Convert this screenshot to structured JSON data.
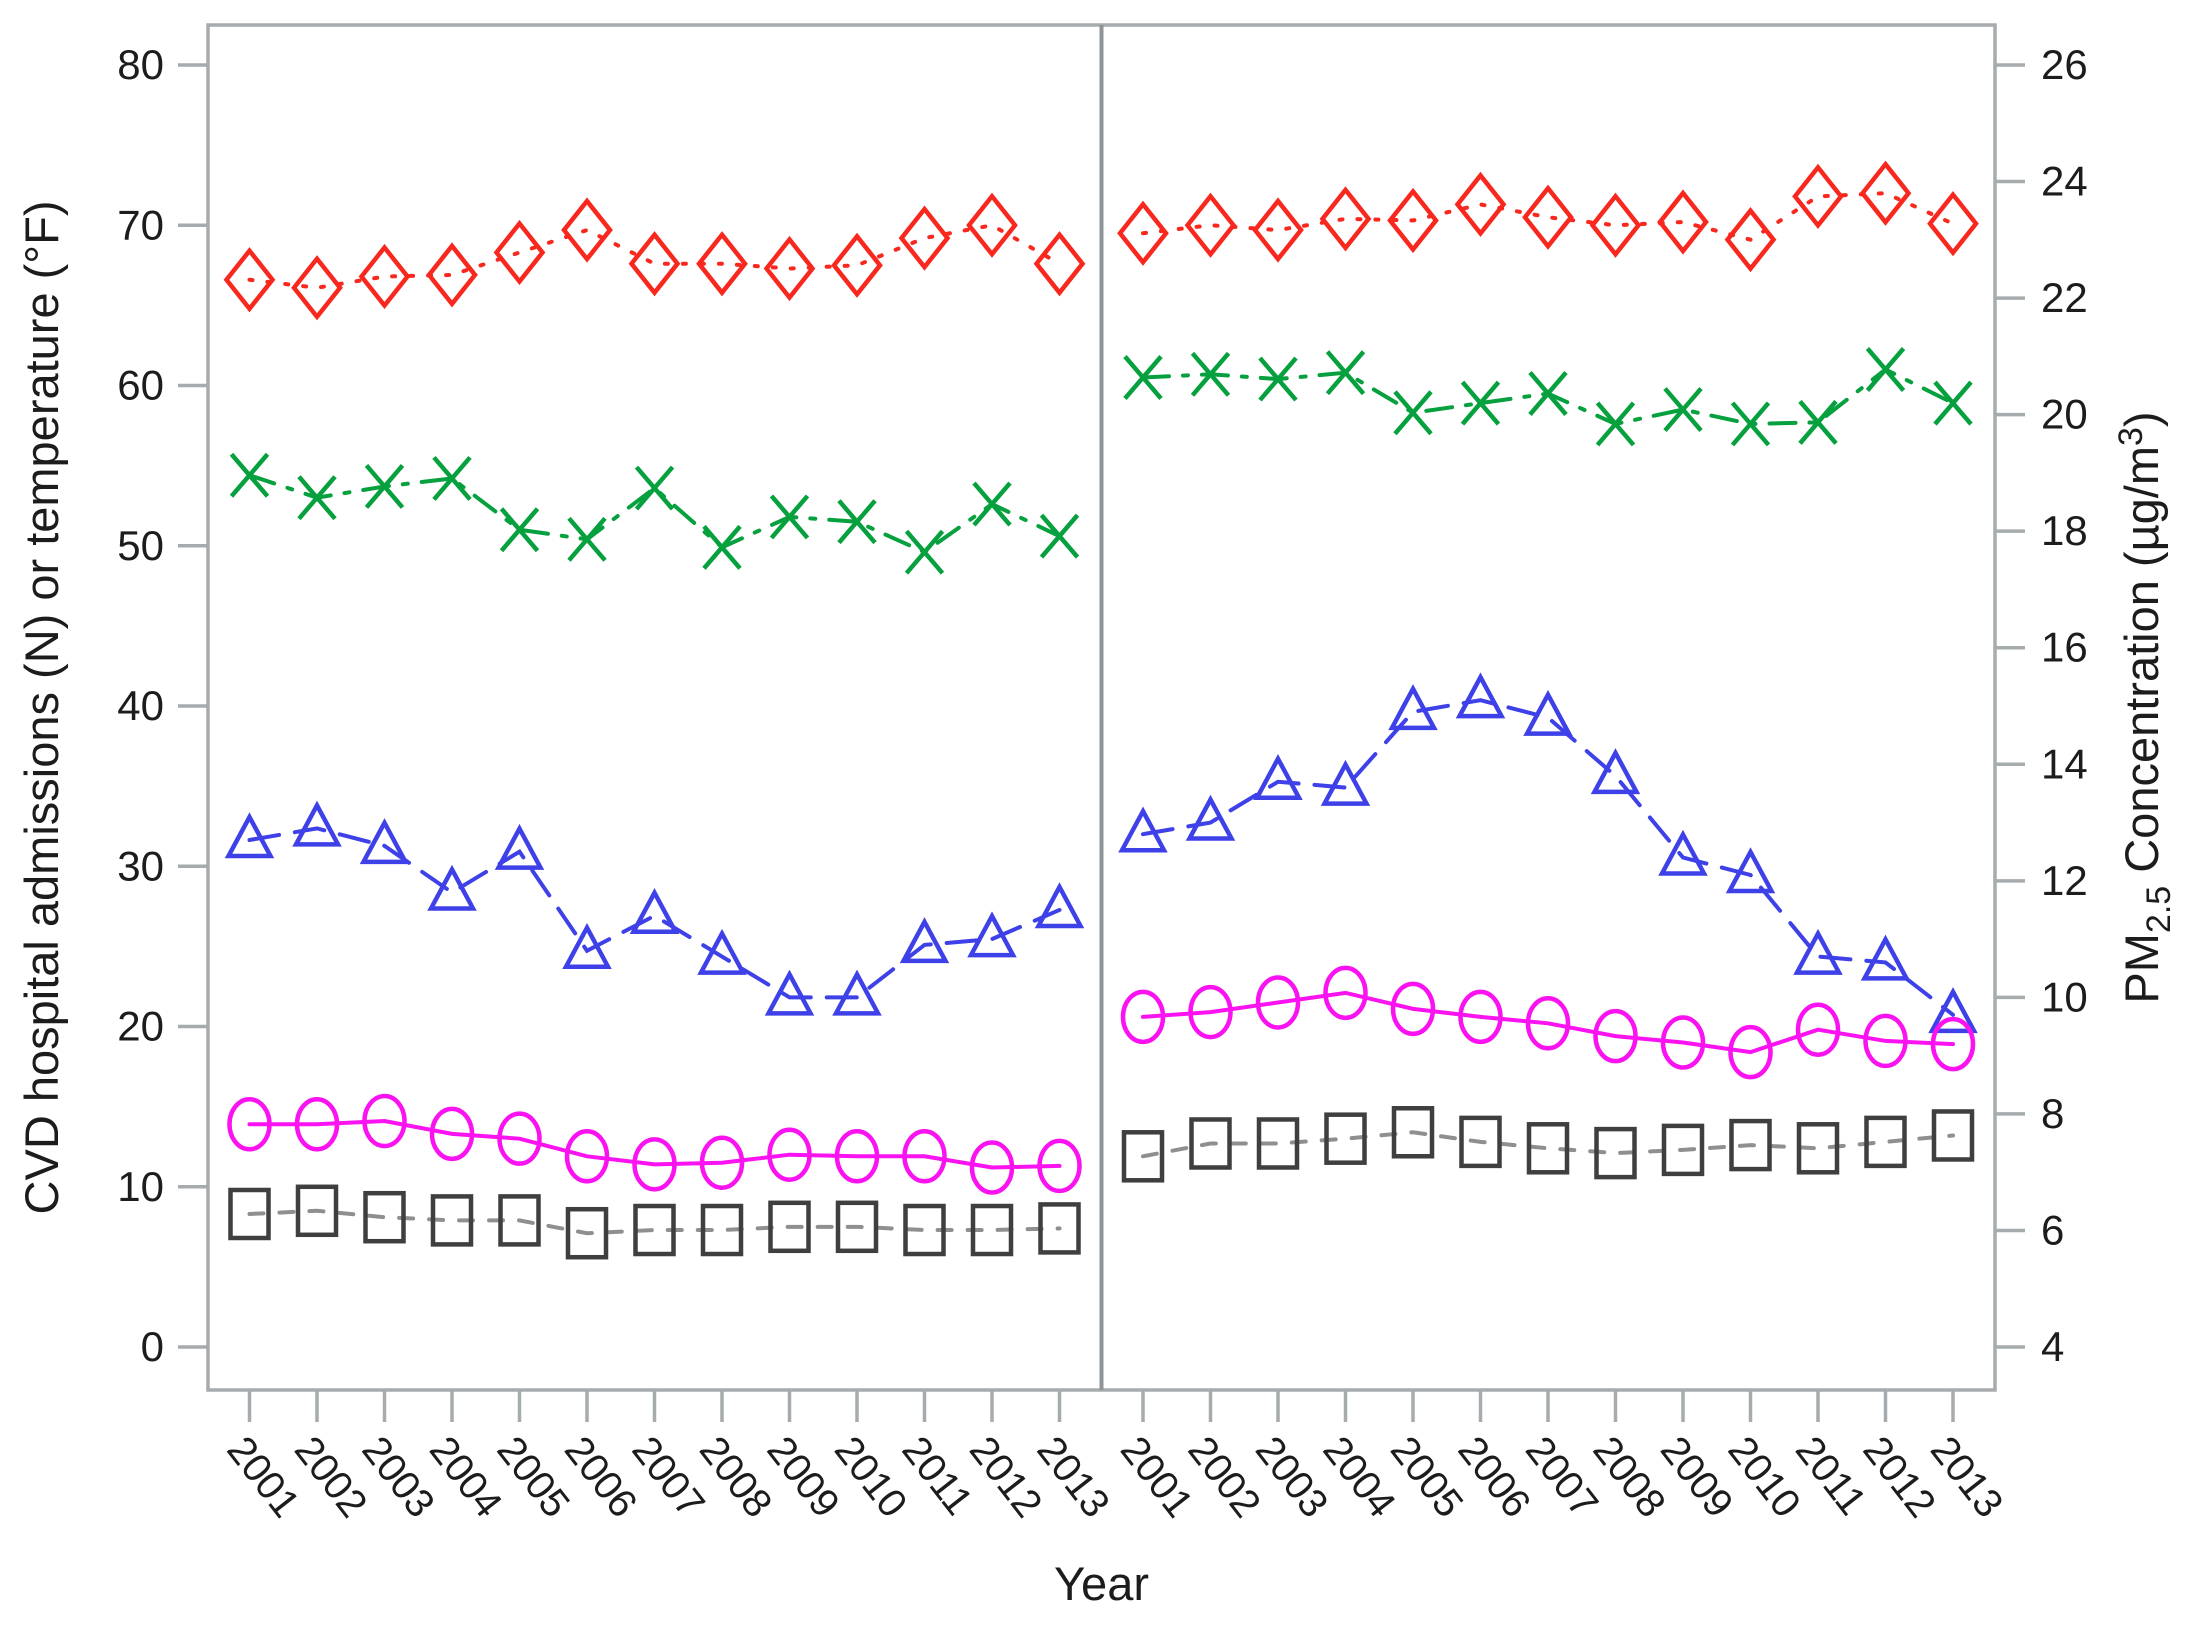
{
  "chart_data": {
    "type": "line",
    "title": "",
    "xlabel": "Year",
    "ylabel_left": "CVD hospital admissions (N) or temperature (°F)",
    "ylabel_right_parts": {
      "pre": "PM",
      "sub": "2.5",
      "mid": " Concentration (µg/m",
      "sup": "3",
      "post": ")"
    },
    "y_left_axis": {
      "min": 0,
      "max": 80,
      "ticks": [
        0,
        10,
        20,
        30,
        40,
        50,
        60,
        70,
        80
      ]
    },
    "y_right_axis": {
      "min": 4,
      "max": 26,
      "ticks": [
        4,
        6,
        8,
        10,
        12,
        14,
        16,
        18,
        20,
        22,
        24,
        26
      ]
    },
    "categories": [
      "2001",
      "2002",
      "2003",
      "2004",
      "2005",
      "2006",
      "2007",
      "2008",
      "2009",
      "2010",
      "2011",
      "2012",
      "2013"
    ],
    "legend": "none visible",
    "grid": false,
    "colors": {
      "red": "#F8281E",
      "green": "#06A13E",
      "blue": "#3E41E8",
      "magenta": "#FA12F0",
      "gray_marker": "#3F3F3F",
      "gray_line": "#8F8F8F",
      "axis": "#A6ABAE",
      "divider": "#8E9496",
      "text": "#1C1C1C"
    },
    "panels": [
      {
        "name": "left-panel",
        "series": [
          {
            "id": "red-diamonds",
            "marker": "diamond",
            "axis": "left",
            "line": "dotted",
            "values": [
              66.6,
              66.1,
              66.8,
              66.9,
              68.3,
              69.7,
              67.6,
              67.6,
              67.3,
              67.5,
              69.2,
              70.0,
              67.6
            ]
          },
          {
            "id": "green-crosses",
            "marker": "xcross",
            "axis": "left",
            "line": "dashdot",
            "values": [
              54.4,
              53.0,
              53.7,
              54.2,
              51.0,
              50.4,
              53.6,
              49.9,
              51.8,
              51.5,
              49.6,
              52.6,
              50.6
            ]
          },
          {
            "id": "blue-triangles",
            "marker": "triangle",
            "axis": "right",
            "line": "dashed",
            "values": [
              12.7,
              12.9,
              12.6,
              11.8,
              12.5,
              10.8,
              11.4,
              10.7,
              10.0,
              10.0,
              10.9,
              11.0,
              11.5
            ]
          },
          {
            "id": "magenta-circles",
            "marker": "circle",
            "axis": "left",
            "line": "solid",
            "values": [
              13.9,
              13.9,
              14.1,
              13.3,
              13.0,
              11.9,
              11.4,
              11.5,
              12.0,
              11.9,
              11.9,
              11.2,
              11.3
            ]
          },
          {
            "id": "gray-squares",
            "marker": "square",
            "axis": "left",
            "line": "shortdash",
            "values": [
              8.3,
              8.5,
              8.1,
              7.9,
              7.9,
              7.1,
              7.3,
              7.3,
              7.5,
              7.5,
              7.3,
              7.3,
              7.4
            ]
          }
        ]
      },
      {
        "name": "right-panel",
        "series": [
          {
            "id": "red-diamonds",
            "marker": "diamond",
            "axis": "left",
            "line": "dotted",
            "values": [
              69.5,
              70.0,
              69.7,
              70.4,
              70.3,
              71.3,
              70.5,
              70.0,
              70.2,
              69.1,
              71.8,
              72.0,
              70.1
            ]
          },
          {
            "id": "green-crosses",
            "marker": "xcross",
            "axis": "left",
            "line": "dashdot",
            "values": [
              60.5,
              60.7,
              60.4,
              60.8,
              58.3,
              58.9,
              59.5,
              57.6,
              58.5,
              57.6,
              57.7,
              61.0,
              58.9
            ]
          },
          {
            "id": "blue-triangles",
            "marker": "triangle",
            "axis": "right",
            "line": "dashed",
            "values": [
              12.8,
              13.0,
              13.7,
              13.6,
              14.9,
              15.1,
              14.8,
              13.8,
              12.4,
              12.1,
              10.7,
              10.6,
              9.7
            ]
          },
          {
            "id": "magenta-circles",
            "marker": "circle",
            "axis": "left",
            "line": "solid",
            "values": [
              20.6,
              20.9,
              21.5,
              22.1,
              21.1,
              20.6,
              20.2,
              19.4,
              19.0,
              18.4,
              19.8,
              19.1,
              18.9
            ]
          },
          {
            "id": "gray-squares",
            "marker": "square",
            "axis": "left",
            "line": "shortdash",
            "values": [
              11.9,
              12.7,
              12.7,
              13.0,
              13.4,
              12.8,
              12.4,
              12.1,
              12.3,
              12.6,
              12.4,
              12.8,
              13.2
            ]
          }
        ]
      }
    ]
  }
}
